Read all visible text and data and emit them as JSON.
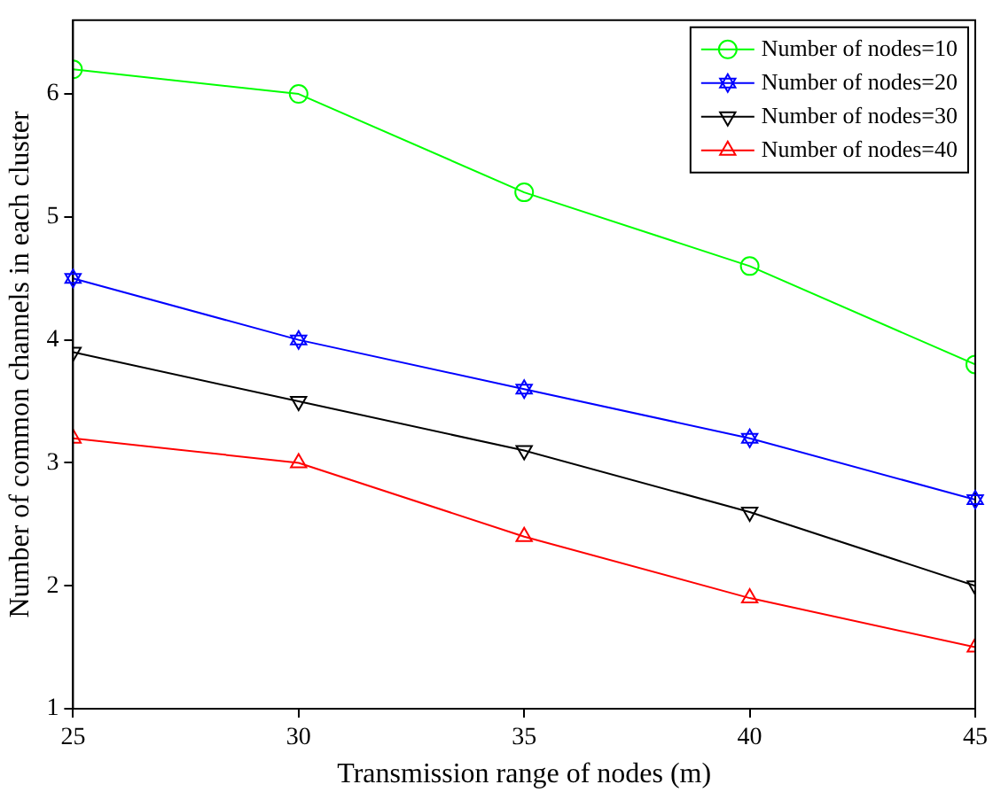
{
  "chart_data": {
    "type": "line",
    "xlabel": "Transmission range of nodes (m)",
    "ylabel": "Number of common channels in each cluster",
    "x": [
      25,
      30,
      35,
      40,
      45
    ],
    "xlim": [
      25,
      45
    ],
    "xticks": [
      25,
      30,
      35,
      40,
      45
    ],
    "ylim": [
      1,
      6.6
    ],
    "yticks": [
      1,
      2,
      3,
      4,
      5,
      6
    ],
    "grid": false,
    "legend": "top right",
    "line_style": "solid",
    "series": [
      {
        "name": "Number of nodes=10",
        "color": "#00ff00",
        "marker": "circle",
        "values": [
          6.2,
          6.0,
          5.2,
          4.6,
          3.8
        ]
      },
      {
        "name": "Number of nodes=20",
        "color": "#0000ff",
        "marker": "star",
        "values": [
          4.5,
          4.0,
          3.6,
          3.2,
          2.7
        ]
      },
      {
        "name": "Number of nodes=30",
        "color": "#000000",
        "marker": "triangle-down",
        "values": [
          3.9,
          3.5,
          3.1,
          2.6,
          2.0
        ]
      },
      {
        "name": "Number of nodes=40",
        "color": "#ff0000",
        "marker": "triangle",
        "values": [
          3.2,
          3.0,
          2.4,
          1.9,
          1.5
        ]
      }
    ]
  }
}
